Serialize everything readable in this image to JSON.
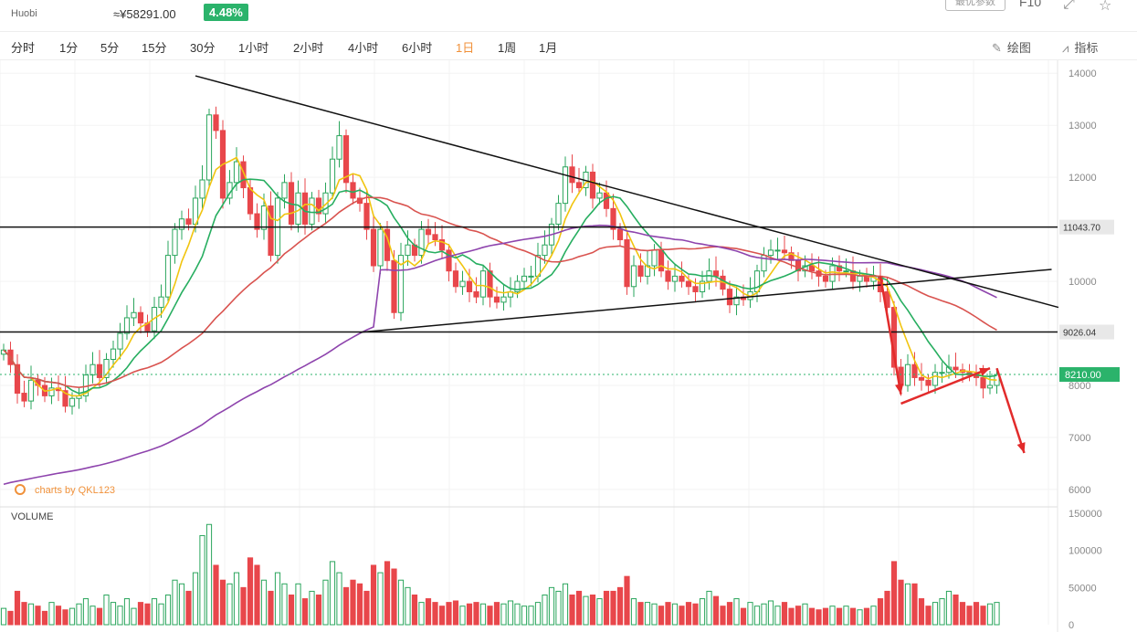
{
  "header": {
    "exchange": "Huobi",
    "cny_price": "≈¥58291.00",
    "change_pct": "4.48%",
    "param_label": "最优参数",
    "f10_label": "F10",
    "fullscreen_icon": "fullscreen-icon",
    "favorite_icon": "star-icon"
  },
  "tabs": [
    {
      "label": "分时"
    },
    {
      "label": "1分"
    },
    {
      "label": "5分"
    },
    {
      "label": "15分"
    },
    {
      "label": "30分"
    },
    {
      "label": "1小时"
    },
    {
      "label": "2小时"
    },
    {
      "label": "4小时"
    },
    {
      "label": "6小时"
    },
    {
      "label": "1日",
      "active": true
    },
    {
      "label": "1周"
    },
    {
      "label": "1月"
    }
  ],
  "tools": {
    "draw_label": "绘图",
    "indicator_label": "指标",
    "draw_icon": "pencil-icon",
    "indicator_icon": "chart-line-icon"
  },
  "watermark": "charts by QKL123",
  "volume_label": "VOLUME",
  "colors": {
    "up": "#2aa55c",
    "down": "#e8474b",
    "ma5": "#f1c40f",
    "ma10": "#27ae60",
    "ma30": "#d9534f",
    "ma60": "#8e44ad",
    "last": "#2bb36b",
    "annotation": "#e22b2b"
  },
  "chart_data": {
    "type": "candlestick",
    "price_axis": {
      "ticks": [
        14000,
        13000,
        12000,
        10000,
        8000,
        7000,
        6000
      ],
      "ylim": [
        5700,
        14250
      ]
    },
    "volume_axis": {
      "ticks": [
        "150000",
        "100000",
        "50000",
        "0"
      ],
      "ylim": [
        0,
        155000
      ]
    },
    "reference_lines": [
      {
        "value": 11043.7,
        "label": "11043.70"
      },
      {
        "value": 9026.04,
        "label": "9026.04"
      }
    ],
    "last_price": {
      "value": 8210.0,
      "label": "8210.00"
    },
    "num_bars": 146,
    "closes": [
      8680,
      8400,
      7850,
      7700,
      8100,
      8000,
      7800,
      7950,
      7900,
      7600,
      7750,
      7800,
      8200,
      8400,
      8150,
      8500,
      8700,
      9000,
      9300,
      9400,
      9200,
      9050,
      9500,
      9700,
      10500,
      11000,
      11200,
      11100,
      11600,
      11950,
      13200,
      12900,
      11600,
      11900,
      12300,
      11800,
      11300,
      11000,
      11450,
      10500,
      11600,
      11900,
      11100,
      11700,
      11100,
      11600,
      11300,
      11700,
      12350,
      12800,
      11900,
      11600,
      11500,
      11000,
      10300,
      11000,
      10400,
      9400,
      10500,
      10700,
      10500,
      11000,
      10900,
      10800,
      10600,
      10200,
      9900,
      10000,
      9800,
      9700,
      10200,
      9700,
      9600,
      9700,
      9800,
      10000,
      10100,
      10100,
      10500,
      10700,
      11100,
      11500,
      12200,
      11900,
      11800,
      12100,
      11600,
      11700,
      11400,
      11000,
      10800,
      9900,
      10300,
      10100,
      10300,
      10600,
      10200,
      10000,
      10100,
      10000,
      9900,
      9800,
      10000,
      10200,
      10100,
      9850,
      9550,
      9700,
      9650,
      9800,
      10200,
      10500,
      10600,
      10600,
      10550,
      10400,
      10200,
      10300,
      10200,
      10100,
      10000,
      10300,
      10200,
      10200,
      10000,
      10100,
      10000,
      10100,
      9800,
      9500,
      8350,
      8000,
      8400,
      8150,
      8100,
      8000,
      8250,
      8250,
      8350,
      8300,
      8250,
      8200,
      8150,
      7950,
      8000,
      8210
    ],
    "volumes": [
      22000,
      18000,
      45000,
      30000,
      28000,
      25000,
      18000,
      30000,
      25000,
      20000,
      22000,
      28000,
      35000,
      25000,
      22000,
      40000,
      30000,
      25000,
      35000,
      22000,
      30000,
      28000,
      35000,
      28000,
      40000,
      60000,
      55000,
      45000,
      70000,
      120000,
      135000,
      80000,
      60000,
      55000,
      70000,
      50000,
      90000,
      80000,
      60000,
      45000,
      70000,
      55000,
      40000,
      55000,
      35000,
      45000,
      40000,
      60000,
      85000,
      70000,
      50000,
      60000,
      55000,
      45000,
      80000,
      70000,
      85000,
      75000,
      60000,
      50000,
      40000,
      30000,
      35000,
      30000,
      25000,
      30000,
      32000,
      25000,
      28000,
      30000,
      28000,
      25000,
      30000,
      28000,
      32000,
      28000,
      25000,
      25000,
      30000,
      40000,
      50000,
      45000,
      55000,
      40000,
      45000,
      38000,
      40000,
      35000,
      45000,
      45000,
      50000,
      65000,
      35000,
      30000,
      30000,
      28000,
      25000,
      30000,
      28000,
      25000,
      30000,
      28000,
      35000,
      45000,
      38000,
      25000,
      30000,
      35000,
      22000,
      30000,
      25000,
      28000,
      32000,
      25000,
      30000,
      22000,
      25000,
      28000,
      22000,
      20000,
      22000,
      25000,
      22000,
      25000,
      22000,
      20000,
      22000,
      25000,
      35000,
      45000,
      85000,
      60000,
      55000,
      55000,
      35000,
      25000,
      30000,
      35000,
      45000,
      40000,
      30000,
      25000,
      30000,
      25000,
      28000,
      30000
    ]
  }
}
